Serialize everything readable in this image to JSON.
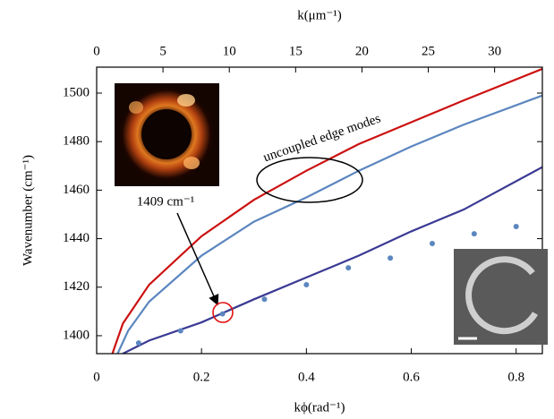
{
  "chart_data": {
    "type": "line",
    "xlabel": "kϕ(rad⁻¹)",
    "ylabel": "Wavenumber (cm⁻¹)",
    "x2label": "k(μm⁻¹)",
    "xlim": [
      0,
      0.85
    ],
    "xticks": [
      0,
      0.2,
      0.4,
      0.6,
      0.8
    ],
    "x2lim": [
      0,
      33.6
    ],
    "x2ticks": [
      0,
      5,
      10,
      15,
      20,
      25,
      30
    ],
    "ylim": [
      1392.6,
      1510.7
    ],
    "yticks": [
      1400,
      1420,
      1440,
      1460,
      1480,
      1500
    ],
    "series": [
      {
        "color": "#cc1111",
        "x": [
          0.03,
          0.05,
          0.1,
          0.2,
          0.3,
          0.4,
          0.5,
          0.6,
          0.7,
          0.85
        ],
        "values": [
          1392.6,
          1405,
          1421,
          1441,
          1456,
          1468,
          1479,
          1488,
          1497,
          1510
        ]
      },
      {
        "color": "#5b86bf",
        "x": [
          0.04,
          0.06,
          0.1,
          0.2,
          0.3,
          0.4,
          0.5,
          0.6,
          0.7,
          0.85
        ],
        "values": [
          1392.6,
          1402,
          1414,
          1433,
          1447,
          1457,
          1468,
          1478,
          1487,
          1499
        ]
      },
      {
        "color": "#3a3a94",
        "x": [
          0.05,
          0.1,
          0.2,
          0.3,
          0.4,
          0.5,
          0.6,
          0.7,
          0.85
        ],
        "values": [
          1392.6,
          1398,
          1405.5,
          1415,
          1424,
          1433,
          1443,
          1452,
          1469.5
        ]
      },
      {
        "color": "#5b86bf",
        "marker": "dot",
        "x": [
          0.08,
          0.16,
          0.24,
          0.32,
          0.4,
          0.48,
          0.56,
          0.64,
          0.72,
          0.8
        ],
        "values": [
          1397,
          1402,
          1409,
          1415,
          1421,
          1428,
          1432,
          1438,
          1442,
          1445
        ]
      }
    ],
    "annotations": [
      "uncoupled edge modes",
      "1409 cm⁻¹"
    ]
  }
}
